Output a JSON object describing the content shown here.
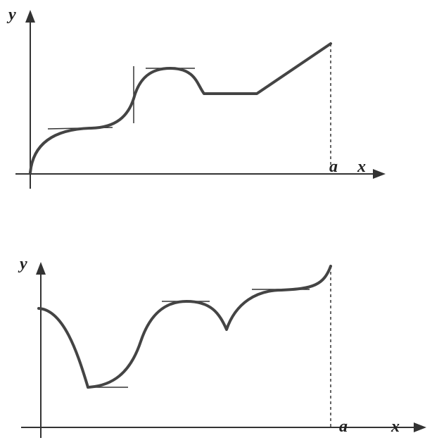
{
  "graphs": [
    {
      "y_label": "y",
      "x_label": "x",
      "a_label": "a"
    },
    {
      "y_label": "y",
      "x_label": "x",
      "a_label": "a"
    }
  ]
}
